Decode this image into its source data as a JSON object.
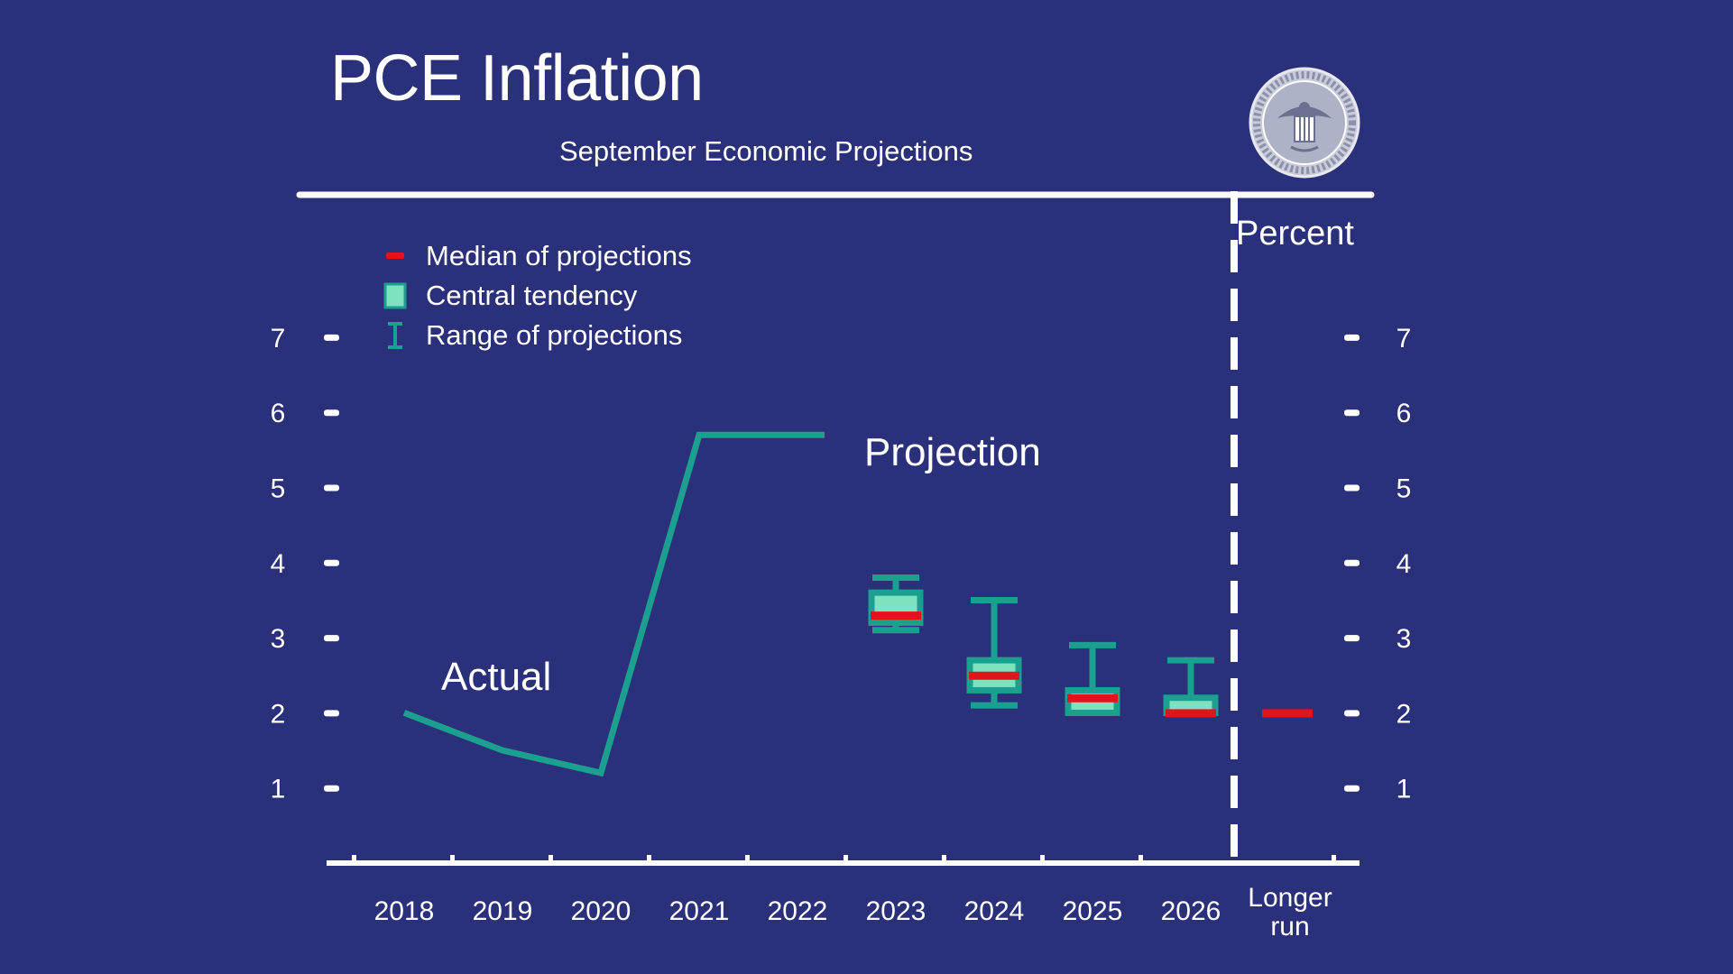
{
  "chart_data": {
    "type": "line",
    "title": "PCE Inflation",
    "subtitle": "September Economic Projections",
    "unit_label": "Percent",
    "categories": [
      "2018",
      "2019",
      "2020",
      "2021",
      "2022",
      "2023",
      "2024",
      "2025",
      "2026",
      "Longer run"
    ],
    "ylim": [
      0,
      7
    ],
    "yticks": [
      "1",
      "2",
      "3",
      "4",
      "5",
      "6",
      "7"
    ],
    "grid": false,
    "legend_position": "top-left",
    "legend": [
      {
        "label": "Median of projections",
        "color": "#e3131b"
      },
      {
        "label": "Central tendency",
        "color": "#7ee2c0"
      },
      {
        "label": "Range of projections",
        "color": "#1ba090"
      }
    ],
    "annotations": {
      "actual": "Actual",
      "projection": "Projection"
    },
    "series": [
      {
        "type": "line",
        "x": [
          "2018",
          "2019",
          "2020",
          "2021",
          "2022"
        ],
        "values": [
          2.0,
          1.5,
          1.2,
          5.7,
          5.7
        ],
        "color": "#1ba090"
      }
    ],
    "projections": [
      {
        "x": "2023",
        "range": [
          3.1,
          3.8
        ],
        "central": [
          3.2,
          3.6
        ],
        "median": 3.3
      },
      {
        "x": "2024",
        "range": [
          2.1,
          3.5
        ],
        "central": [
          2.3,
          2.7
        ],
        "median": 2.5
      },
      {
        "x": "2025",
        "range": [
          2.0,
          2.9
        ],
        "central": [
          2.0,
          2.3
        ],
        "median": 2.2
      },
      {
        "x": "2026",
        "range": [
          2.0,
          2.7
        ],
        "central": [
          2.0,
          2.2
        ],
        "median": 2.0
      },
      {
        "x": "Longer run",
        "range": [
          2.0,
          2.0
        ],
        "central": [
          2.0,
          2.0
        ],
        "median": 2.0
      }
    ]
  },
  "colors": {
    "background": "#2a3079",
    "axis": "#ffffff",
    "line": "#1ba090",
    "central": "#7ee2c0",
    "median": "#e3131b"
  },
  "icons": {
    "seal": "federal-reserve-seal-icon"
  }
}
